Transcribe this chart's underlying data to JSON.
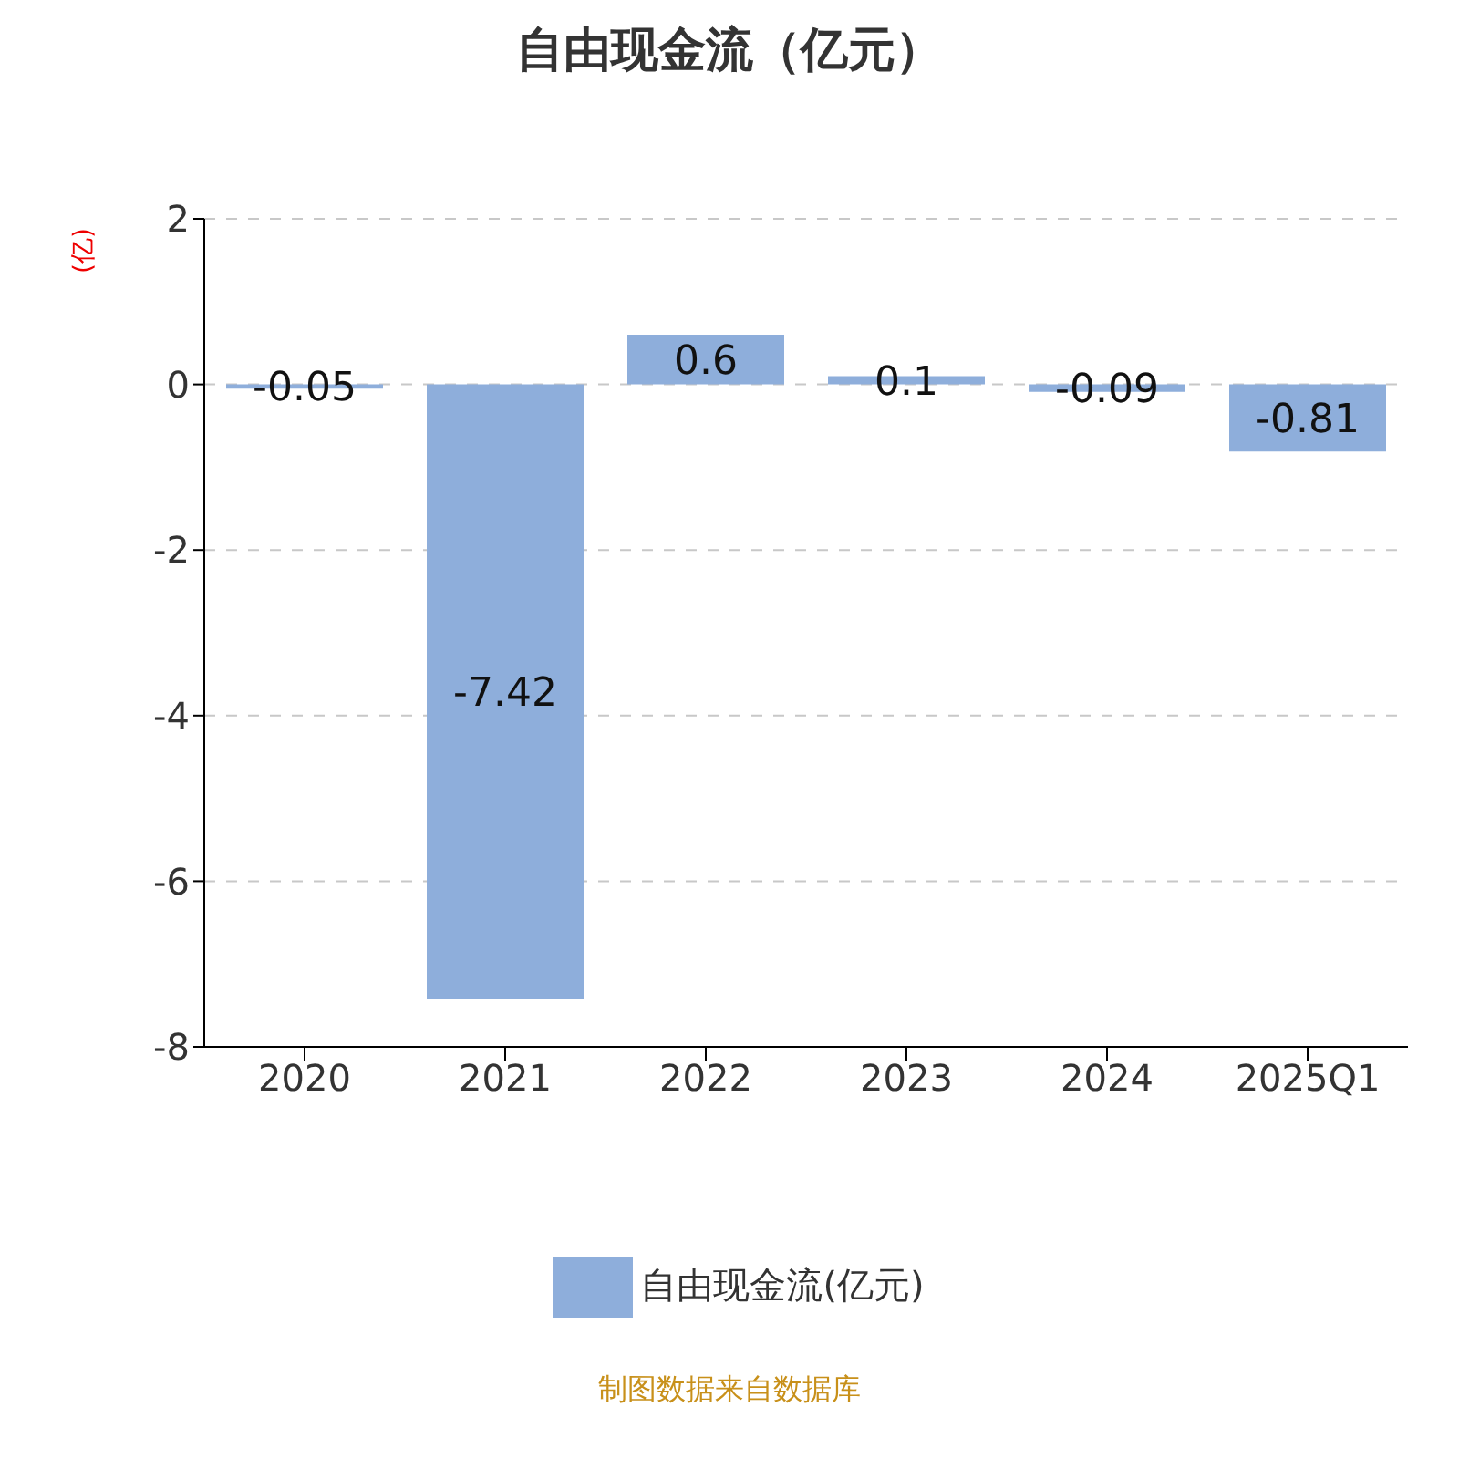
{
  "chart_data": {
    "type": "bar",
    "title": "自由现金流（亿元）",
    "ylabel": "(亿)",
    "categories": [
      "2020",
      "2021",
      "2022",
      "2023",
      "2024",
      "2025Q1"
    ],
    "series": [
      {
        "name": "自由现金流(亿元)",
        "color": "#8eaedb",
        "values": [
          -0.05,
          -7.42,
          0.6,
          0.1,
          -0.09,
          -0.81
        ]
      }
    ],
    "ylim": [
      -8,
      2
    ],
    "yticks": [
      -8,
      -6,
      -4,
      -2,
      0,
      2
    ],
    "grid": "y",
    "legend": "bottom",
    "data_labels": true,
    "annotations": [
      "制图数据来自数据库"
    ]
  }
}
